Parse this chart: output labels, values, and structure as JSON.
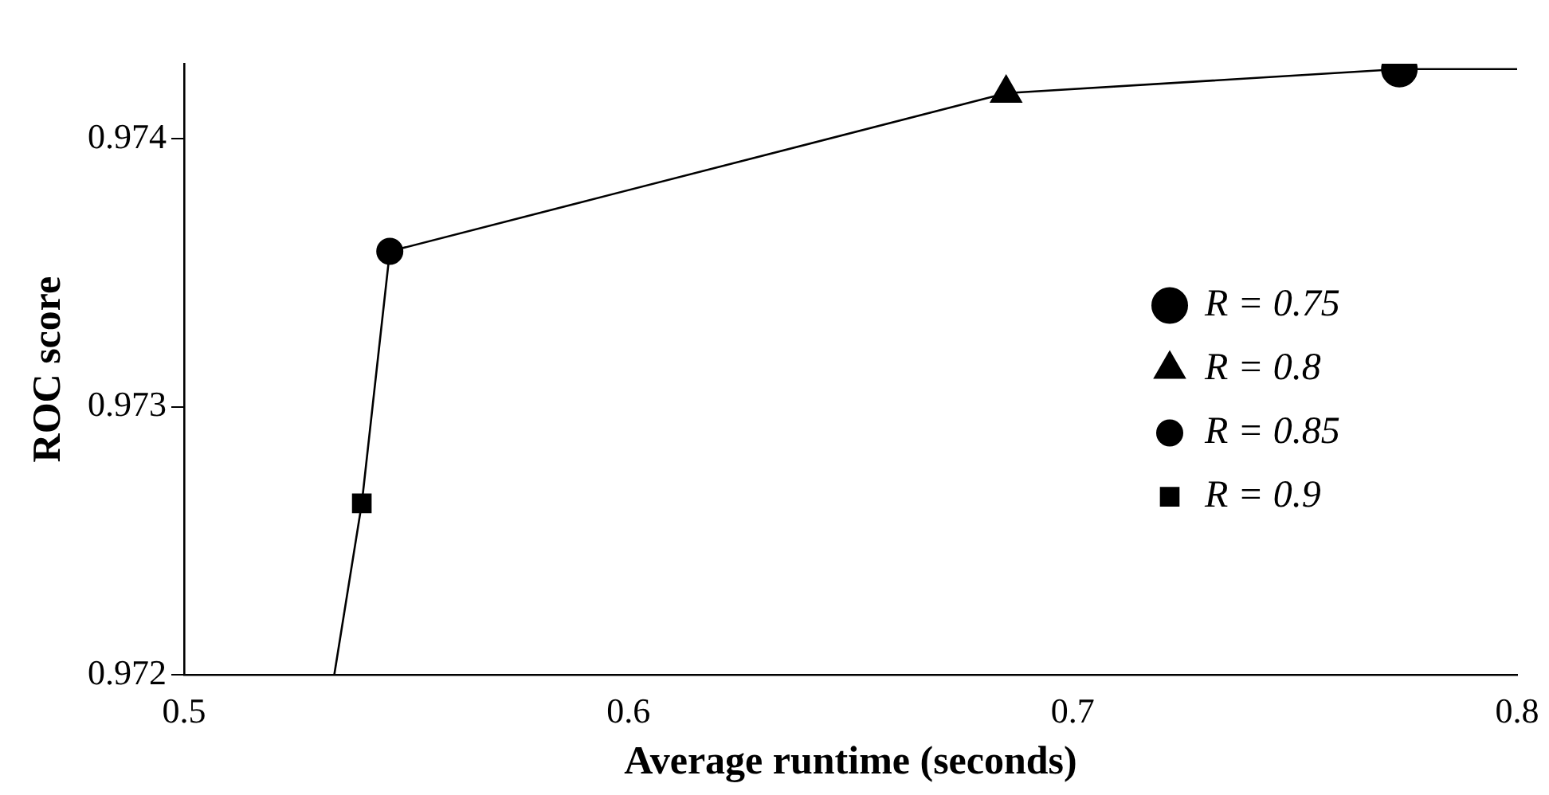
{
  "chart_data": {
    "type": "scatter",
    "xlabel": "Average runtime (seconds)",
    "ylabel": "ROC score",
    "xlim": [
      0.5,
      0.8
    ],
    "xticks": [
      0.5,
      0.6,
      0.7,
      0.8
    ],
    "ylim": [
      0.972,
      0.97428
    ],
    "yticks": [
      0.972,
      0.973,
      0.974
    ],
    "grid": false,
    "legend": "right",
    "series": [
      {
        "type": "line",
        "color": "#000000",
        "marker": "none",
        "line_style": "solid",
        "x": [
          0.5338,
          0.54,
          0.5463,
          0.685,
          0.7735,
          0.8
        ],
        "values": [
          0.972,
          0.97264,
          0.97358,
          0.97417,
          0.97426,
          0.97426
        ]
      },
      {
        "name": "R = 0.75",
        "color": "#000000",
        "marker": "circle",
        "x": [
          0.7735
        ],
        "values": [
          0.97426
        ]
      },
      {
        "name": "R = 0.8",
        "color": "#000000",
        "marker": "triangle",
        "x": [
          0.685
        ],
        "values": [
          0.97417
        ]
      },
      {
        "name": "R = 0.85",
        "color": "#000000",
        "marker": "circle",
        "x": [
          0.5463
        ],
        "values": [
          0.97358
        ]
      },
      {
        "name": "R = 0.9",
        "color": "#000000",
        "marker": "square",
        "x": [
          0.54
        ],
        "values": [
          0.97264
        ]
      }
    ]
  }
}
